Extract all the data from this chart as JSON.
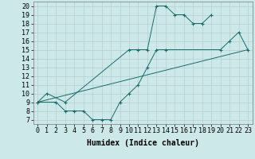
{
  "xlabel": "Humidex (Indice chaleur)",
  "xlim": [
    -0.5,
    23.5
  ],
  "ylim": [
    6.5,
    20.5
  ],
  "xticks": [
    0,
    1,
    2,
    3,
    4,
    5,
    6,
    7,
    8,
    9,
    10,
    11,
    12,
    13,
    14,
    15,
    16,
    17,
    18,
    19,
    20,
    21,
    22,
    23
  ],
  "yticks": [
    7,
    8,
    9,
    10,
    11,
    12,
    13,
    14,
    15,
    16,
    17,
    18,
    19,
    20
  ],
  "bg_color": "#cce8e8",
  "line_color": "#1a6b6b",
  "grid_color": "#b0c8c8",
  "curve1_x": [
    0,
    1,
    3,
    10,
    11,
    12,
    13,
    14,
    15,
    16,
    17,
    18,
    19
  ],
  "curve1_y": [
    9,
    10,
    9,
    15,
    15,
    15,
    20,
    20,
    19,
    19,
    18,
    18,
    19
  ],
  "curve2_x": [
    0,
    2,
    3,
    4,
    5,
    6,
    7,
    8,
    9,
    10,
    11,
    12,
    13,
    14,
    20,
    21,
    22,
    23
  ],
  "curve2_y": [
    9,
    9,
    8,
    8,
    8,
    7,
    7,
    7,
    9,
    10,
    11,
    13,
    15,
    15,
    15,
    16,
    17,
    15
  ],
  "line3_x": [
    0,
    23
  ],
  "line3_y": [
    9,
    15
  ],
  "fontsize_label": 7,
  "fontsize_tick": 6
}
